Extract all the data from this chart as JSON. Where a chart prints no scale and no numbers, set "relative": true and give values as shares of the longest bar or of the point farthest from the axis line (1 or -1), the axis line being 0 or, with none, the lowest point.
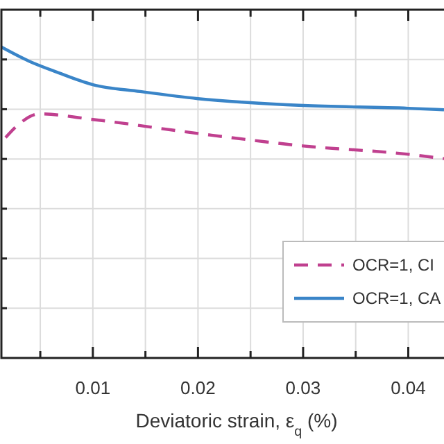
{
  "chart_data": {
    "type": "line",
    "relative": true,
    "xlabel": "Deviatoric strain, ε$_{q}$ (%)",
    "xlim": [
      0.0013,
      0.0434
    ],
    "xticks": [
      {
        "value": 0.005,
        "label": null
      },
      0.01,
      {
        "value": 0.015,
        "label": null
      },
      0.02,
      {
        "value": 0.025,
        "label": null
      },
      0.03,
      {
        "value": 0.035,
        "label": null
      },
      0.04
    ],
    "grid": true,
    "legend": "bottom right",
    "series": [
      {
        "name": "OCR=1, CI",
        "color": "#c0408f",
        "line_style": "dashed",
        "x": [
          0.0017,
          0.003,
          0.0049,
          0.01,
          0.02,
          0.03,
          0.04,
          0.0434
        ],
        "values": [
          0.709,
          0.753,
          0.785,
          0.767,
          0.722,
          0.682,
          0.655,
          0.641
        ]
      },
      {
        "name": "OCR=1, CA",
        "color": "#3a85c8",
        "line_style": "solid",
        "x": [
          0.0013,
          0.0039,
          0.0066,
          0.01,
          0.0145,
          0.02,
          0.03,
          0.04,
          0.0434
        ],
        "values": [
          1,
          0.955,
          0.919,
          0.879,
          0.857,
          0.834,
          0.812,
          0.803,
          0.798
        ]
      }
    ]
  }
}
